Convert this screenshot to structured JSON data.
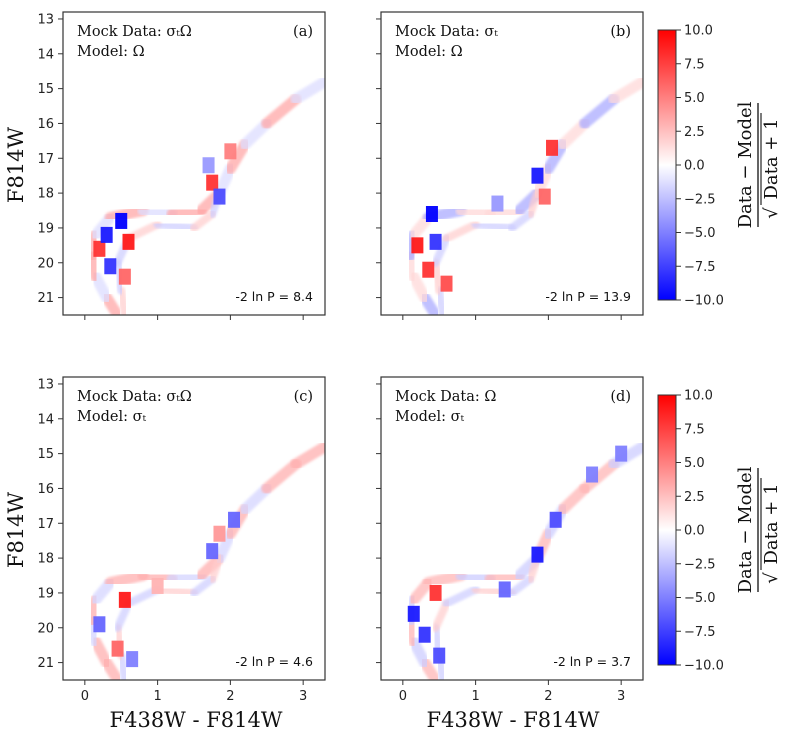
{
  "chart_data": {
    "type": "heatmap",
    "xlabel": "F438W - F814W",
    "ylabel": "F814W",
    "xlim": [
      -0.3,
      3.3
    ],
    "ylim": [
      21.5,
      12.8
    ],
    "xticks": [
      0,
      1,
      2,
      3
    ],
    "yticks": [
      13,
      14,
      15,
      16,
      17,
      18,
      19,
      20,
      21
    ],
    "colorbar": {
      "title_numerator": "Data − Model",
      "title_denominator": "Data + 1",
      "title_sqrt": "√",
      "range": [
        -10.0,
        10.0
      ],
      "ticks": [
        "10.0",
        "7.5",
        "5.0",
        "2.5",
        "0.0",
        "−2.5",
        "−5.0",
        "−7.5",
        "−10.0"
      ],
      "tick_values": [
        10.0,
        7.5,
        5.0,
        2.5,
        0.0,
        -2.5,
        -5.0,
        -7.5,
        -10.0
      ],
      "colormap": "bwr",
      "color_low": "#0000ff",
      "color_mid": "#ffffff",
      "color_high": "#ff0000"
    },
    "panels": [
      {
        "id": "a",
        "label": "(a)",
        "mock_data_label": "Mock Data: σₜΩ",
        "model_label": "Model: Ω",
        "statistic_label": "-2 ln P = 8.4",
        "statistic": 8.4,
        "residual_blobs": [
          {
            "x": 0.2,
            "y": 19.6,
            "value": 8
          },
          {
            "x": 0.3,
            "y": 19.2,
            "value": -9
          },
          {
            "x": 0.5,
            "y": 18.8,
            "value": -10
          },
          {
            "x": 0.6,
            "y": 19.4,
            "value": 9
          },
          {
            "x": 0.35,
            "y": 20.1,
            "value": -8
          },
          {
            "x": 0.55,
            "y": 20.4,
            "value": 6
          },
          {
            "x": 1.75,
            "y": 17.7,
            "value": 8
          },
          {
            "x": 1.85,
            "y": 18.1,
            "value": -7
          },
          {
            "x": 2.0,
            "y": 16.8,
            "value": 5
          },
          {
            "x": 1.7,
            "y": 17.2,
            "value": -4
          }
        ]
      },
      {
        "id": "b",
        "label": "(b)",
        "mock_data_label": "Mock Data: σₜ",
        "model_label": "Model: Ω",
        "statistic_label": "-2 ln P = 13.9",
        "statistic": 13.9,
        "residual_blobs": [
          {
            "x": 0.2,
            "y": 19.5,
            "value": 9
          },
          {
            "x": 0.4,
            "y": 18.6,
            "value": -10
          },
          {
            "x": 0.45,
            "y": 19.4,
            "value": -8
          },
          {
            "x": 0.35,
            "y": 20.2,
            "value": 8
          },
          {
            "x": 0.6,
            "y": 20.6,
            "value": 7
          },
          {
            "x": 1.85,
            "y": 17.5,
            "value": -9
          },
          {
            "x": 2.05,
            "y": 16.7,
            "value": 8
          },
          {
            "x": 1.95,
            "y": 18.1,
            "value": 6
          },
          {
            "x": 1.3,
            "y": 18.3,
            "value": -4
          }
        ]
      },
      {
        "id": "c",
        "label": "(c)",
        "mock_data_label": "Mock Data: σₜΩ",
        "model_label": "Model: σₜ",
        "statistic_label": "-2 ln P = 4.6",
        "statistic": 4.6,
        "residual_blobs": [
          {
            "x": 0.55,
            "y": 19.2,
            "value": 9
          },
          {
            "x": 0.2,
            "y": 19.9,
            "value": -6
          },
          {
            "x": 0.45,
            "y": 20.6,
            "value": 6
          },
          {
            "x": 0.65,
            "y": 20.9,
            "value": -5
          },
          {
            "x": 1.75,
            "y": 17.8,
            "value": -6
          },
          {
            "x": 1.85,
            "y": 17.3,
            "value": 4
          },
          {
            "x": 2.05,
            "y": 16.9,
            "value": -6
          },
          {
            "x": 1.0,
            "y": 18.8,
            "value": 3
          }
        ]
      },
      {
        "id": "d",
        "label": "(d)",
        "mock_data_label": "Mock Data: Ω",
        "model_label": "Model: σₜ",
        "statistic_label": "-2 ln P = 3.7",
        "statistic": 3.7,
        "residual_blobs": [
          {
            "x": 0.15,
            "y": 19.6,
            "value": -9
          },
          {
            "x": 0.45,
            "y": 19.0,
            "value": 8
          },
          {
            "x": 0.3,
            "y": 20.2,
            "value": -8
          },
          {
            "x": 0.5,
            "y": 20.8,
            "value": -7
          },
          {
            "x": 1.85,
            "y": 17.9,
            "value": -9
          },
          {
            "x": 2.1,
            "y": 16.9,
            "value": -7
          },
          {
            "x": 2.6,
            "y": 15.6,
            "value": -5
          },
          {
            "x": 3.0,
            "y": 15.0,
            "value": -5
          },
          {
            "x": 1.4,
            "y": 18.9,
            "value": -6
          }
        ]
      }
    ]
  }
}
